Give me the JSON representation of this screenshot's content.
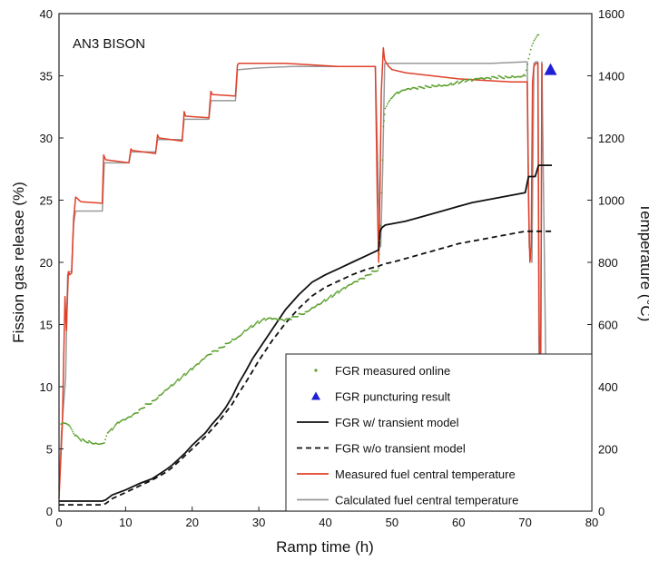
{
  "chart_data": {
    "type": "line",
    "annotation": "AN3 BISON",
    "xlabel": "Ramp time (h)",
    "ylabel_left": "Fission gas release (%)",
    "ylabel_right": "Temperature (°C)",
    "xlim": [
      0,
      80
    ],
    "ylim_left": [
      0,
      40
    ],
    "ylim_right": [
      0,
      1600
    ],
    "xticks": [
      "0",
      "10",
      "20",
      "30",
      "40",
      "50",
      "60",
      "70",
      "80"
    ],
    "yticks_left": [
      "0",
      "5",
      "10",
      "15",
      "20",
      "25",
      "30",
      "35",
      "40"
    ],
    "yticks_right": [
      "0",
      "200",
      "400",
      "600",
      "800",
      "1000",
      "1200",
      "1400",
      "1600"
    ],
    "grid": false,
    "legend_position": "bottom-right",
    "series": [
      {
        "name": "FGR measured online",
        "axis": "left",
        "style": "dots",
        "color": "#5aa02c",
        "x": [
          0.3,
          0.8,
          1.5,
          2.5,
          3.5,
          4.5,
          5.5,
          6.3,
          6.8,
          7.3,
          8,
          9,
          10,
          11,
          12,
          13,
          14,
          15,
          16,
          17,
          18,
          19,
          20,
          21,
          22,
          23,
          24,
          25,
          26,
          27,
          28,
          29,
          30,
          31,
          32,
          33,
          34,
          35,
          36,
          37,
          38,
          39,
          40,
          41,
          42,
          43,
          44,
          45,
          46,
          47,
          48,
          48.3,
          48.7,
          49,
          49.5,
          50,
          51,
          52,
          53,
          54,
          55,
          56,
          57,
          58,
          59,
          60,
          61,
          62,
          63,
          64,
          65,
          66,
          67,
          68,
          69,
          70,
          70.5,
          71,
          71.5,
          72
        ],
        "y": [
          7.0,
          7.0,
          6.8,
          6.0,
          5.7,
          5.6,
          5.5,
          5.5,
          5.6,
          6.4,
          6.6,
          7.1,
          7.3,
          7.6,
          8.0,
          8.5,
          8.8,
          9.3,
          9.8,
          10.2,
          10.6,
          11.0,
          11.4,
          11.8,
          12.3,
          12.7,
          13.0,
          13.4,
          13.8,
          14.1,
          14.6,
          14.9,
          15.2,
          15.4,
          15.4,
          15.3,
          15.3,
          15.5,
          15.8,
          16.0,
          16.4,
          16.7,
          17.0,
          17.3,
          17.6,
          17.9,
          18.2,
          18.5,
          18.8,
          19.2,
          19.5,
          23.0,
          31.0,
          32.5,
          33.0,
          33.3,
          33.6,
          33.8,
          33.9,
          34.0,
          34.1,
          34.2,
          34.3,
          34.3,
          34.4,
          34.5,
          34.6,
          34.6,
          34.7,
          34.7,
          34.8,
          34.9,
          34.9,
          35.0,
          35.0,
          35.1,
          36.5,
          37.5,
          38.0,
          38.3
        ]
      },
      {
        "name": "FGR puncturing result",
        "axis": "left",
        "style": "triangle",
        "color": "#1f1fd6",
        "x": [
          73.8
        ],
        "y": [
          35.5
        ]
      },
      {
        "name": "FGR w/ transient model",
        "axis": "left",
        "style": "solid",
        "color": "#111111",
        "x": [
          0,
          6.5,
          7,
          8,
          10,
          12,
          14,
          16,
          17,
          18,
          19,
          20,
          21,
          22,
          23,
          24,
          25,
          26,
          27,
          28,
          29,
          30,
          32,
          34,
          36,
          38,
          40,
          42,
          44,
          46,
          48,
          48.2,
          48.5,
          49,
          50,
          52,
          54,
          56,
          58,
          60,
          62,
          64,
          66,
          68,
          70,
          70.5,
          71,
          71.5,
          72,
          73,
          74
        ],
        "y": [
          0.8,
          0.8,
          0.9,
          1.3,
          1.7,
          2.2,
          2.6,
          3.3,
          3.7,
          4.2,
          4.7,
          5.3,
          5.8,
          6.3,
          7.0,
          7.6,
          8.3,
          9.2,
          10.3,
          11.2,
          12.2,
          13.0,
          14.6,
          16.2,
          17.4,
          18.4,
          19.0,
          19.5,
          20.0,
          20.5,
          21.0,
          22.5,
          22.8,
          23.0,
          23.1,
          23.3,
          23.6,
          23.9,
          24.2,
          24.5,
          24.8,
          25.0,
          25.2,
          25.4,
          25.6,
          26.9,
          26.9,
          26.9,
          27.8,
          27.8,
          27.8
        ]
      },
      {
        "name": "FGR w/o transient model",
        "axis": "left",
        "style": "dashed",
        "color": "#111111",
        "x": [
          0,
          6.5,
          7,
          8,
          10,
          12,
          14,
          16,
          17,
          18,
          19,
          20,
          21,
          22,
          23,
          24,
          25,
          26,
          27,
          28,
          29,
          30,
          32,
          34,
          36,
          38,
          40,
          42,
          44,
          46,
          48,
          48.5,
          49,
          50,
          52,
          54,
          56,
          58,
          60,
          62,
          64,
          66,
          68,
          70,
          71,
          72,
          73,
          74
        ],
        "y": [
          0.5,
          0.5,
          0.6,
          1.0,
          1.5,
          2.0,
          2.5,
          3.1,
          3.5,
          4.0,
          4.5,
          5.0,
          5.5,
          6.0,
          6.6,
          7.2,
          7.9,
          8.6,
          9.5,
          10.3,
          11.2,
          12.1,
          13.7,
          15.1,
          16.3,
          17.3,
          18.0,
          18.5,
          19.0,
          19.4,
          19.7,
          19.8,
          19.9,
          20.0,
          20.3,
          20.6,
          20.9,
          21.2,
          21.5,
          21.7,
          21.9,
          22.1,
          22.3,
          22.5,
          22.5,
          22.5,
          22.5,
          22.5
        ]
      },
      {
        "name": "Measured fuel central temperature",
        "axis": "right",
        "style": "solid",
        "color": "#e0402a",
        "x": [
          0,
          0.5,
          0.9,
          1.1,
          1.4,
          1.6,
          1.9,
          2.2,
          2.5,
          2.8,
          3.0,
          3.3,
          6.5,
          6.7,
          7.0,
          10.5,
          10.8,
          11.0,
          14.5,
          14.8,
          15.0,
          18.5,
          18.8,
          19.0,
          22.5,
          22.8,
          23.0,
          26.5,
          26.8,
          27.0,
          30,
          34,
          38,
          42,
          45,
          47.5,
          47.8,
          48.0,
          48.2,
          48.4,
          48.7,
          48.9,
          49.2,
          49.5,
          50,
          52,
          56,
          60,
          64,
          68,
          70.3,
          70.5,
          70.7,
          70.9,
          71.1,
          71.3,
          71.6,
          71.9,
          72.1,
          72.3,
          72.5
        ],
        "y": [
          40,
          280,
          690,
          580,
          770,
          760,
          765,
          940,
          1010,
          1005,
          1000,
          995,
          990,
          1145,
          1130,
          1120,
          1165,
          1160,
          1150,
          1210,
          1200,
          1190,
          1285,
          1270,
          1265,
          1350,
          1340,
          1335,
          1435,
          1440,
          1440,
          1440,
          1435,
          1430,
          1430,
          1430,
          1000,
          800,
          1050,
          1350,
          1490,
          1450,
          1440,
          1430,
          1420,
          1410,
          1400,
          1390,
          1385,
          1380,
          1380,
          1000,
          800,
          850,
          1380,
          1430,
          1440,
          1440,
          600,
          320,
          1440
        ]
      },
      {
        "name": "Calculated fuel central temperature",
        "axis": "right",
        "style": "solid",
        "color": "#999999",
        "x": [
          0,
          0.4,
          1.0,
          1.3,
          1.6,
          1.9,
          2.2,
          2.5,
          2.8,
          3.0,
          6.5,
          6.8,
          7.0,
          10.5,
          10.8,
          11.0,
          14.5,
          14.8,
          15.0,
          18.5,
          18.8,
          19.0,
          22.5,
          22.8,
          23.0,
          26.5,
          26.8,
          27.0,
          30,
          35,
          40,
          45,
          47.5,
          48.0,
          48.3,
          48.6,
          48.9,
          49.2,
          49.5,
          55,
          60,
          65,
          70,
          70.3,
          70.6,
          71.0,
          71.3,
          71.6,
          71.9,
          72.1,
          72.3,
          72.5,
          73.2
        ],
        "y": [
          70,
          260,
          430,
          760,
          770,
          770,
          925,
          965,
          965,
          965,
          965,
          1120,
          1120,
          1120,
          1155,
          1155,
          1155,
          1195,
          1195,
          1195,
          1260,
          1260,
          1260,
          1320,
          1320,
          1320,
          1420,
          1420,
          1425,
          1430,
          1430,
          1430,
          1430,
          1000,
          850,
          1100,
          1440,
          1440,
          1440,
          1440,
          1440,
          1440,
          1445,
          1445,
          850,
          800,
          1440,
          1445,
          1445,
          280,
          280,
          1445,
          280
        ]
      }
    ]
  }
}
